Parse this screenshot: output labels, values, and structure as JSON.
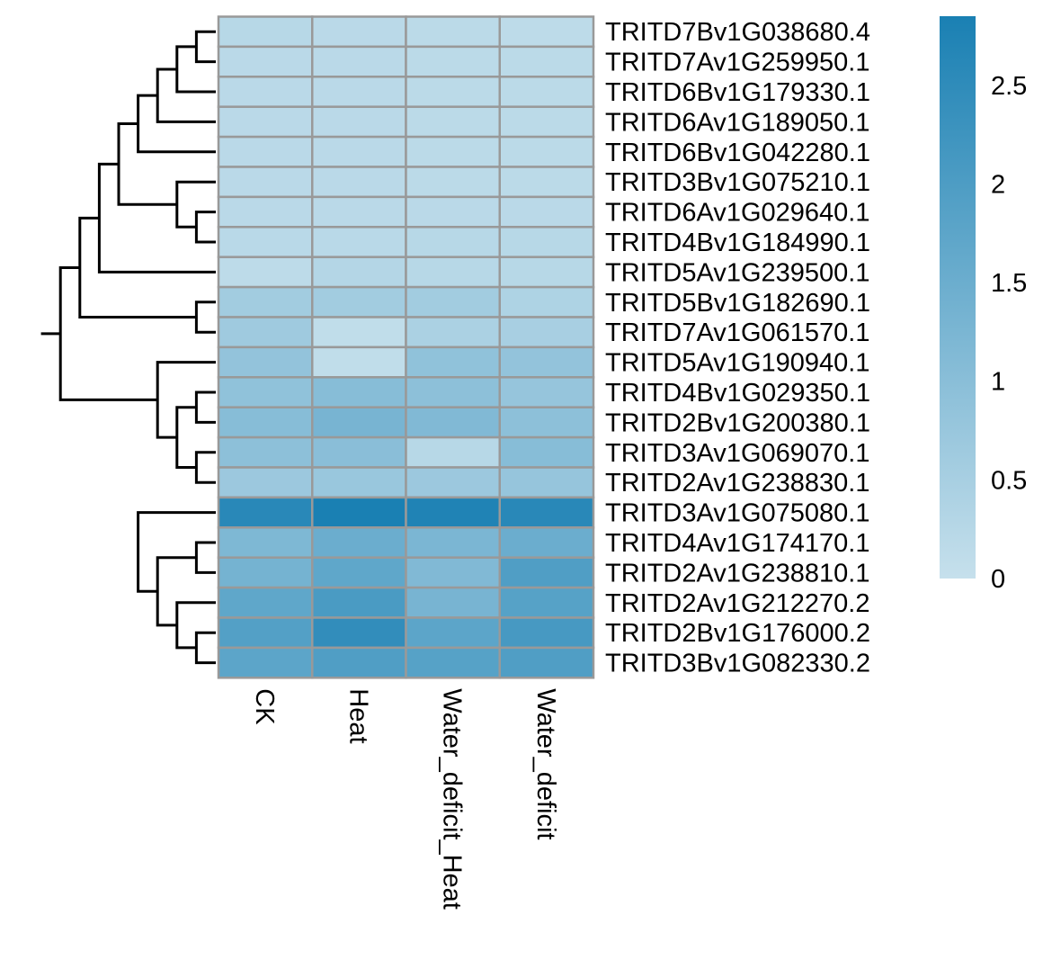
{
  "chart_data": {
    "type": "heatmap",
    "title": "",
    "xlabel": "",
    "ylabel": "",
    "columns": [
      "CK",
      "Heat",
      "Water_deficit_Heat",
      "Water_deficit"
    ],
    "rows": [
      "TRITD7Bv1G038680.4",
      "TRITD7Av1G259950.1",
      "TRITD6Bv1G179330.1",
      "TRITD6Av1G189050.1",
      "TRITD6Bv1G042280.1",
      "TRITD3Bv1G075210.1",
      "TRITD6Av1G029640.1",
      "TRITD4Bv1G184990.1",
      "TRITD5Av1G239500.1",
      "TRITD5Bv1G182690.1",
      "TRITD7Av1G061570.1",
      "TRITD5Av1G190940.1",
      "TRITD4Bv1G029350.1",
      "TRITD2Bv1G200380.1",
      "TRITD3Av1G069070.1",
      "TRITD2Av1G238830.1",
      "TRITD3Av1G075080.1",
      "TRITD4Av1G174170.1",
      "TRITD2Av1G238810.1",
      "TRITD2Av1G212270.2",
      "TRITD2Bv1G176000.2",
      "TRITD3Bv1G082330.2"
    ],
    "values": [
      [
        0.25,
        0.2,
        0.18,
        0.15
      ],
      [
        0.2,
        0.2,
        0.18,
        0.18
      ],
      [
        0.2,
        0.2,
        0.18,
        0.18
      ],
      [
        0.2,
        0.2,
        0.18,
        0.18
      ],
      [
        0.2,
        0.2,
        0.18,
        0.18
      ],
      [
        0.2,
        0.2,
        0.18,
        0.18
      ],
      [
        0.2,
        0.2,
        0.2,
        0.2
      ],
      [
        0.22,
        0.22,
        0.25,
        0.25
      ],
      [
        0.15,
        0.3,
        0.25,
        0.25
      ],
      [
        0.6,
        0.6,
        0.6,
        0.4
      ],
      [
        0.65,
        0.1,
        0.45,
        0.5
      ],
      [
        0.85,
        0.1,
        0.9,
        0.85
      ],
      [
        0.9,
        1.05,
        0.95,
        0.8
      ],
      [
        1.05,
        1.3,
        1.15,
        0.95
      ],
      [
        0.95,
        1.0,
        0.25,
        1.05
      ],
      [
        0.7,
        0.75,
        0.7,
        0.8
      ],
      [
        2.6,
        2.85,
        2.75,
        2.6
      ],
      [
        1.2,
        1.5,
        1.25,
        1.5
      ],
      [
        1.35,
        1.7,
        1.15,
        1.95
      ],
      [
        1.7,
        2.05,
        1.3,
        1.85
      ],
      [
        1.9,
        2.45,
        1.75,
        2.1
      ],
      [
        1.75,
        1.95,
        1.85,
        1.95
      ]
    ],
    "colorbar": {
      "range": [
        0,
        2.85
      ],
      "ticks": [
        0,
        0.5,
        1,
        1.5,
        2,
        2.5
      ],
      "tick_labels": [
        "0",
        "0.5",
        "1",
        "1.5",
        "2",
        "2.5"
      ],
      "low_color": "#c6e0ec",
      "high_color": "#1a80b3"
    },
    "grid_color": "#999999",
    "row_dendrogram": true,
    "legend_position": "right"
  }
}
